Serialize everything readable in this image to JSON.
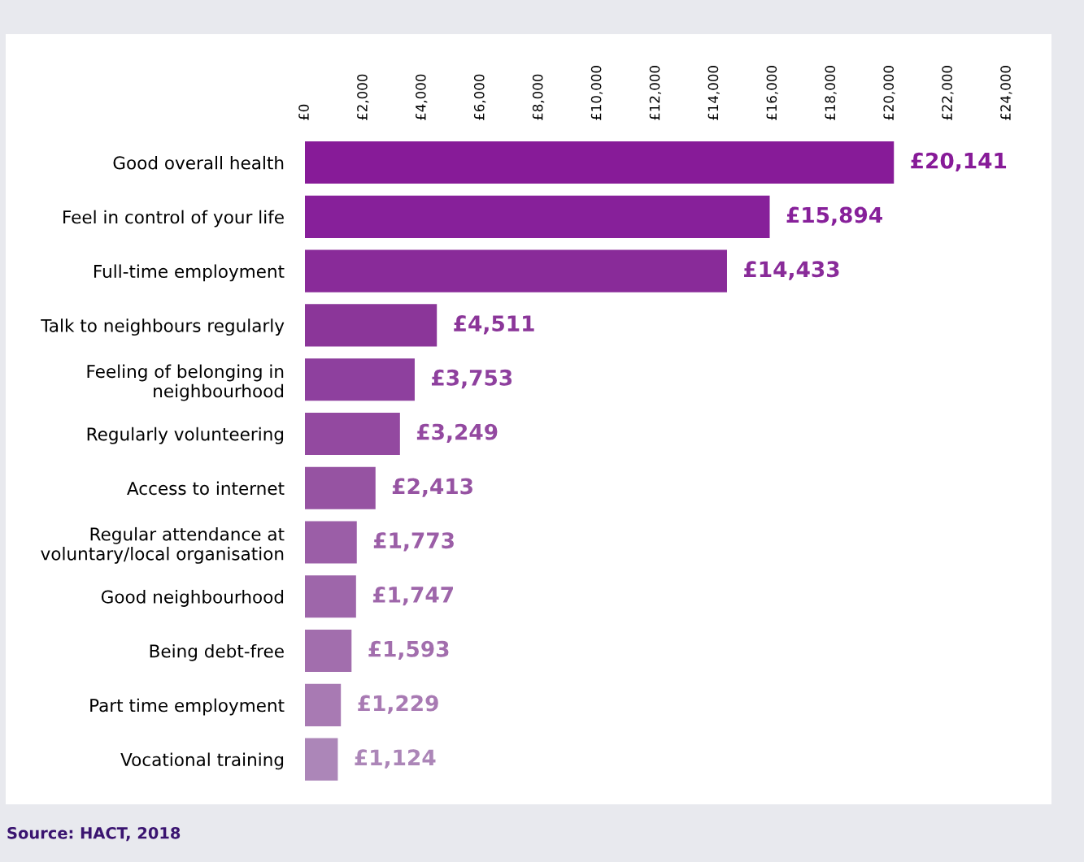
{
  "chart_data": {
    "type": "bar",
    "orientation": "horizontal",
    "categories": [
      "Good overall health",
      "Feel in control of your life",
      "Full-time employment",
      "Talk to neighbours regularly",
      "Feeling of belonging in\nneighbourhood",
      "Regularly volunteering",
      "Access to internet",
      "Regular attendance at\nvoluntary/local organisation",
      "Good neighbourhood",
      "Being debt-free",
      "Part time employment",
      "Vocational training"
    ],
    "values": [
      20141,
      15894,
      14433,
      4511,
      3753,
      3249,
      2413,
      1773,
      1747,
      1593,
      1229,
      1124
    ],
    "value_labels": [
      "£20,141",
      "£15,894",
      "£14,433",
      "£4,511",
      "£3,753",
      "£3,249",
      "£2,413",
      "£1,773",
      "£1,747",
      "£1,593",
      "£1,229",
      "£1,124"
    ],
    "colors": [
      "#871b98",
      "#87209a",
      "#892b99",
      "#8b3699",
      "#8e409e",
      "#9349a0",
      "#9653a2",
      "#9b5ea7",
      "#9e66aa",
      "#a26ead",
      "#a87ab3",
      "#ac86b8"
    ],
    "xlim": [
      0,
      24000
    ],
    "xticks": [
      {
        "value": 0,
        "label": "£0"
      },
      {
        "value": 2000,
        "label": "£2,000"
      },
      {
        "value": 4000,
        "label": "£4,000"
      },
      {
        "value": 6000,
        "label": "£6,000"
      },
      {
        "value": 8000,
        "label": "£8,000"
      },
      {
        "value": 10000,
        "label": "£10,000"
      },
      {
        "value": 12000,
        "label": "£12,000"
      },
      {
        "value": 14000,
        "label": "£14,000"
      },
      {
        "value": 16000,
        "label": "£16,000"
      },
      {
        "value": 18000,
        "label": "£18,000"
      },
      {
        "value": 20000,
        "label": "£20,000"
      },
      {
        "value": 22000,
        "label": "£22,000"
      },
      {
        "value": 24000,
        "label": "£24,000"
      }
    ],
    "grid": false,
    "legend": false,
    "annotations": [
      "Source: HACT, 2018"
    ]
  }
}
